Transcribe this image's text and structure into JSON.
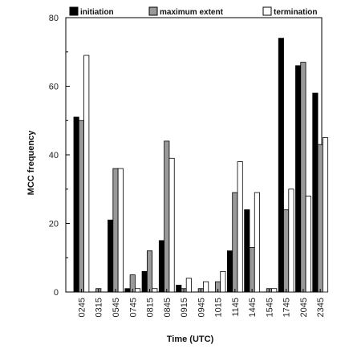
{
  "chart_data": {
    "type": "bar",
    "title": "",
    "xlabel": "Time (UTC)",
    "ylabel": "MCC frequency",
    "ylim": [
      0,
      80
    ],
    "yticks": [
      0,
      20,
      40,
      60,
      80
    ],
    "grid": false,
    "legend_position": "top",
    "categories": [
      "0245",
      "0315",
      "0545",
      "0745",
      "0815",
      "0845",
      "0915",
      "0945",
      "1015",
      "1145",
      "1445",
      "1545",
      "1745",
      "2045",
      "2345"
    ],
    "series": [
      {
        "name": "initiation",
        "color": "#000000",
        "values": [
          51,
          0,
          21,
          1,
          6,
          15,
          2,
          0,
          0,
          12,
          24,
          0,
          74,
          66,
          58
        ]
      },
      {
        "name": "maximum extent",
        "color": "#999999",
        "values": [
          50,
          1,
          36,
          5,
          12,
          44,
          1,
          1,
          3,
          29,
          13,
          1,
          24,
          67,
          43
        ]
      },
      {
        "name": "termination",
        "color": "#ffffff",
        "values": [
          69,
          0,
          36,
          1,
          1,
          39,
          4,
          3,
          6,
          38,
          29,
          1,
          30,
          28,
          45
        ]
      }
    ]
  }
}
